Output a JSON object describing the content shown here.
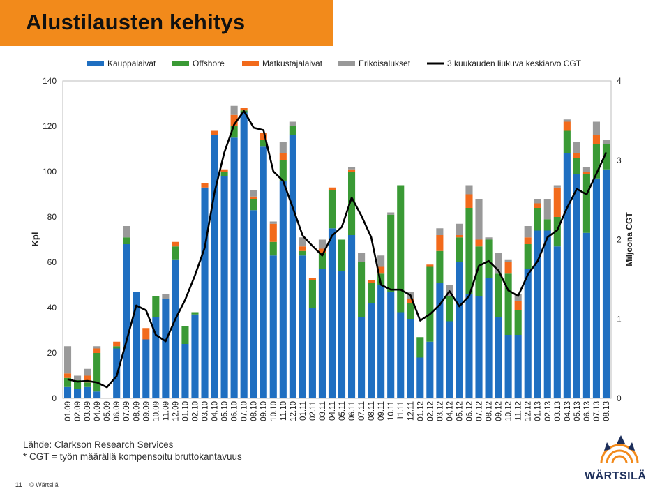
{
  "title": "Alustilausten kehitys",
  "source_lines": [
    "Lähde: Clarkson Research Services",
    "* CGT = työn määrällä kompensoitu bruttokantavuus"
  ],
  "footer": {
    "page": "11",
    "company": "© Wärtsilä"
  },
  "logo_text": "WÄRTSILÄ",
  "colors": {
    "Kauppalaivat": "#1f6fc1",
    "Offshore": "#3a9a35",
    "Matkustajalaivat": "#f26a1b",
    "Erikoisalukset": "#999999",
    "line": "#000000",
    "title_bar": "#f28a1b"
  },
  "chart_data": {
    "type": "bar",
    "stacked": true,
    "ylabel": "Kpl",
    "y2label": "Miljoona CGT",
    "ylim": [
      0,
      140
    ],
    "yticks": [
      0,
      20,
      40,
      60,
      80,
      100,
      120,
      140
    ],
    "y2lim": [
      0,
      4
    ],
    "y2ticks": [
      0,
      1,
      2,
      3,
      4
    ],
    "categories": [
      "01.09",
      "02.09",
      "03.09",
      "04.09",
      "05.09",
      "06.09",
      "07.09",
      "08.09",
      "09.09",
      "10.09",
      "11.09",
      "12.09",
      "01.10",
      "02.10",
      "03.10",
      "04.10",
      "05.10",
      "06.10",
      "07.10",
      "08.10",
      "09.10",
      "10.10",
      "11.10",
      "12.10",
      "01.11",
      "02.11",
      "03.11",
      "04.11",
      "05.11",
      "06.11",
      "07.11",
      "08.11",
      "09.11",
      "10.11",
      "11.11",
      "12.11",
      "01.12",
      "02.12",
      "03.12",
      "04.12",
      "05.12",
      "06.12",
      "07.12",
      "08.12",
      "09.12",
      "10.12",
      "11.12",
      "12.12",
      "01.13",
      "02.13",
      "03.13",
      "04.13",
      "05.13",
      "06.13",
      "07.13",
      "08.13"
    ],
    "series": [
      {
        "name": "Kauppalaivat",
        "values": [
          5,
          4,
          5,
          3,
          0,
          22,
          68,
          47,
          26,
          36,
          44,
          61,
          24,
          37,
          93,
          116,
          98,
          115,
          126,
          83,
          111,
          63,
          96,
          116,
          63,
          40,
          57,
          75,
          56,
          72,
          36,
          42,
          50,
          47,
          38,
          35,
          18,
          25,
          51,
          34,
          60,
          46,
          45,
          53,
          36,
          28,
          28,
          57,
          74,
          74,
          67,
          108,
          99,
          73,
          97,
          101
        ]
      },
      {
        "name": "Offshore",
        "values": [
          4,
          4,
          2,
          17,
          0,
          1,
          3,
          0,
          0,
          9,
          0,
          6,
          8,
          1,
          0,
          0,
          2,
          5,
          1,
          5,
          3,
          6,
          9,
          4,
          2,
          12,
          7,
          17,
          14,
          28,
          24,
          9,
          5,
          34,
          56,
          7,
          9,
          33,
          14,
          11,
          11,
          38,
          22,
          17,
          19,
          27,
          11,
          11,
          10,
          5,
          13,
          10,
          7,
          26,
          15,
          11
        ]
      },
      {
        "name": "Matkustajalaivat",
        "values": [
          2,
          0,
          3,
          2,
          0,
          2,
          0,
          0,
          5,
          0,
          0,
          2,
          0,
          0,
          2,
          2,
          1,
          5,
          1,
          1,
          3,
          8,
          3,
          0,
          2,
          1,
          2,
          1,
          0,
          1,
          0,
          1,
          3,
          0,
          0,
          2,
          0,
          1,
          7,
          0,
          1,
          6,
          3,
          0,
          0,
          5,
          4,
          3,
          2,
          0,
          13,
          4,
          2,
          1,
          4,
          0
        ]
      },
      {
        "name": "Erikoisalukset",
        "values": [
          12,
          2,
          3,
          1,
          0,
          0,
          5,
          0,
          0,
          0,
          2,
          0,
          0,
          0,
          0,
          0,
          0,
          4,
          0,
          3,
          0,
          1,
          5,
          2,
          4,
          0,
          4,
          0,
          0,
          1,
          4,
          0,
          5,
          1,
          0,
          3,
          0,
          0,
          3,
          5,
          5,
          4,
          18,
          1,
          9,
          1,
          3,
          5,
          2,
          9,
          1,
          1,
          5,
          2,
          6,
          2
        ]
      }
    ],
    "line": {
      "name": "3 kuukauden liukuva keskiarvo CGT",
      "values": [
        0.24,
        0.21,
        0.22,
        0.2,
        0.14,
        0.28,
        0.72,
        1.17,
        1.11,
        0.8,
        0.72,
        1.0,
        1.24,
        1.55,
        1.9,
        2.6,
        3.1,
        3.45,
        3.62,
        3.41,
        3.38,
        2.86,
        2.74,
        2.4,
        2.05,
        1.92,
        1.8,
        2.05,
        2.16,
        2.53,
        2.3,
        2.03,
        1.43,
        1.37,
        1.37,
        1.3,
        0.98,
        1.06,
        1.18,
        1.35,
        1.16,
        1.29,
        1.67,
        1.73,
        1.61,
        1.36,
        1.29,
        1.56,
        1.73,
        2.03,
        2.12,
        2.4,
        2.64,
        2.57,
        2.83,
        3.1
      ]
    }
  }
}
